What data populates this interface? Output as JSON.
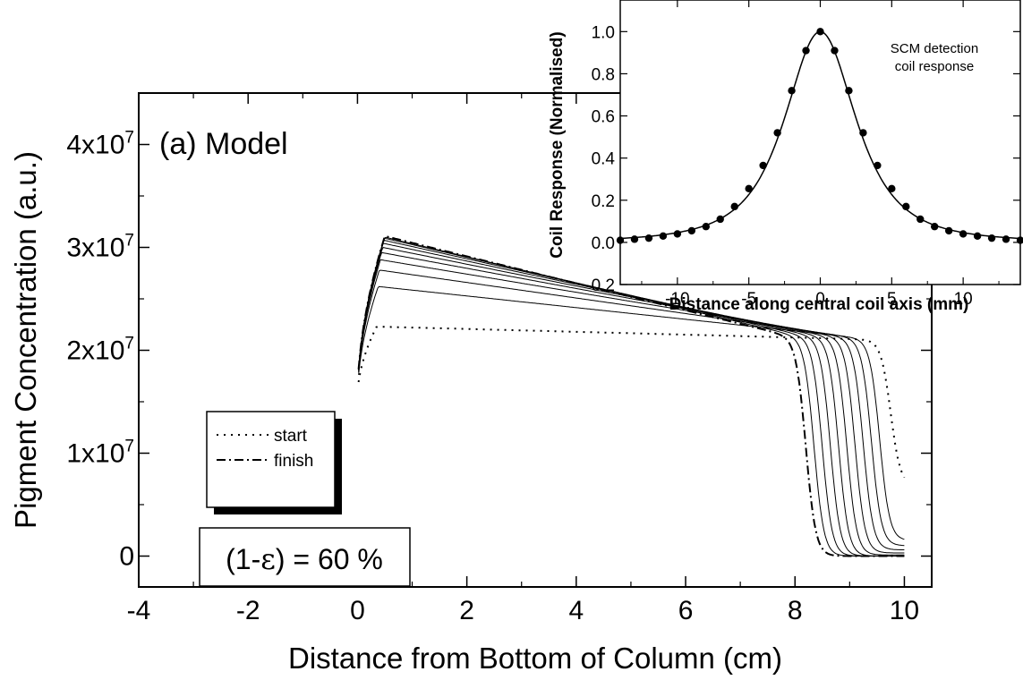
{
  "chart_data": [
    {
      "type": "line",
      "panel_label": "(a) Model",
      "xlabel": "Distance from Bottom of Column (cm)",
      "ylabel": "Pigment Concentration (a.u.)",
      "xlim": [
        -4,
        10.5
      ],
      "ylim": [
        -0.3,
        4.5
      ],
      "y_scale_note": "×10^7",
      "x_ticks": [
        "-4",
        "-2",
        "0",
        "2",
        "4",
        "6",
        "8",
        "10"
      ],
      "y_ticks": [
        {
          "value": 0,
          "base": "0",
          "exp": ""
        },
        {
          "value": 1,
          "base": "1x10",
          "exp": "7"
        },
        {
          "value": 2,
          "base": "2x10",
          "exp": "7"
        },
        {
          "value": 3,
          "base": "3x10",
          "exp": "7"
        },
        {
          "value": 4,
          "base": "4x10",
          "exp": "7"
        }
      ],
      "legend": [
        {
          "label": "start",
          "style": "dotted"
        },
        {
          "label": "finish",
          "style": "dash-dot"
        }
      ],
      "annotation": {
        "prefix": "(1-",
        "symbol": "ε",
        "suffix": ") = 60 %"
      },
      "grid": false,
      "legend_position": "left-middle",
      "series": [
        {
          "style": "dotted",
          "peak": 2.23,
          "peak_x": 0.35,
          "front_x": 9.75,
          "plateau": 2.1,
          "end_value": 0.68
        },
        {
          "style": "solid",
          "peak": 2.62,
          "peak_x": 0.38,
          "front_x": 9.55,
          "plateau": 2.1,
          "end_value": 0.15
        },
        {
          "style": "solid",
          "peak": 2.78,
          "peak_x": 0.4,
          "front_x": 9.4,
          "plateau": 2.1,
          "end_value": 0.1
        },
        {
          "style": "solid",
          "peak": 2.88,
          "peak_x": 0.42,
          "front_x": 9.25,
          "plateau": 2.1,
          "end_value": 0.06
        },
        {
          "style": "solid",
          "peak": 2.95,
          "peak_x": 0.44,
          "front_x": 9.1,
          "plateau": 2.1,
          "end_value": 0.03
        },
        {
          "style": "solid",
          "peak": 3.0,
          "peak_x": 0.46,
          "front_x": 8.95,
          "plateau": 2.1,
          "end_value": 0.01
        },
        {
          "style": "solid",
          "peak": 3.04,
          "peak_x": 0.47,
          "front_x": 8.8,
          "plateau": 2.1,
          "end_value": 0.0
        },
        {
          "style": "solid",
          "peak": 3.07,
          "peak_x": 0.48,
          "front_x": 8.65,
          "plateau": 2.1,
          "end_value": 0.0
        },
        {
          "style": "solid",
          "peak": 3.09,
          "peak_x": 0.49,
          "front_x": 8.5,
          "plateau": 2.1,
          "end_value": 0.0
        },
        {
          "style": "solid",
          "peak": 3.1,
          "peak_x": 0.5,
          "front_x": 8.35,
          "plateau": 2.1,
          "end_value": 0.0
        },
        {
          "style": "dash-dot",
          "peak": 3.11,
          "peak_x": 0.5,
          "front_x": 8.2,
          "plateau": 2.1,
          "end_value": 0.0
        }
      ]
    },
    {
      "type": "line",
      "annotation_lines": [
        "SCM detection",
        "coil response"
      ],
      "xlabel": "Distance along central coil axis  (mm)",
      "ylabel": "Coil Response (Normalised)",
      "xlim": [
        -14,
        14
      ],
      "ylim": [
        -0.2,
        1.15
      ],
      "x_ticks": [
        "-10",
        "-5",
        "0",
        "5",
        "10"
      ],
      "y_ticks": [
        "-0.2",
        "0.0",
        "0.2",
        "0.4",
        "0.6",
        "0.8",
        "1.0"
      ],
      "grid": false,
      "points": {
        "x": [
          -14,
          -13,
          -12,
          -11,
          -10,
          -9,
          -8,
          -7,
          -6,
          -5,
          -4,
          -3,
          -2,
          -1,
          0,
          1,
          2,
          3,
          4,
          5,
          6,
          7,
          8,
          9,
          10,
          11,
          12,
          13,
          14
        ],
        "y": [
          0.01,
          0.015,
          0.02,
          0.03,
          0.04,
          0.055,
          0.075,
          0.11,
          0.17,
          0.255,
          0.365,
          0.52,
          0.72,
          0.91,
          1.0,
          0.91,
          0.72,
          0.52,
          0.365,
          0.255,
          0.17,
          0.11,
          0.075,
          0.055,
          0.04,
          0.03,
          0.02,
          0.015,
          0.01
        ]
      }
    }
  ]
}
